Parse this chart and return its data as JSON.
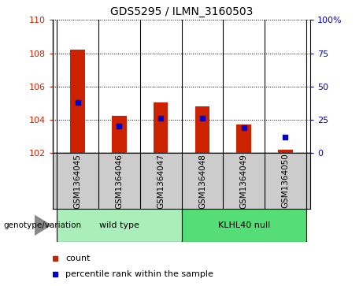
{
  "title": "GDS5295 / ILMN_3160503",
  "samples": [
    "GSM1364045",
    "GSM1364046",
    "GSM1364047",
    "GSM1364048",
    "GSM1364049",
    "GSM1364050"
  ],
  "count_values": [
    108.22,
    104.22,
    105.02,
    104.82,
    103.72,
    102.22
  ],
  "percentile_values": [
    38,
    20,
    26,
    26,
    19,
    12
  ],
  "baseline": 102,
  "ylim_left": [
    102,
    110
  ],
  "ylim_right": [
    0,
    100
  ],
  "yticks_left": [
    102,
    104,
    106,
    108,
    110
  ],
  "yticks_right": [
    0,
    25,
    50,
    75,
    100
  ],
  "bar_color": "#cc2200",
  "dot_color": "#0000cc",
  "bar_width": 0.35,
  "groups": [
    {
      "label": "wild type",
      "samples": [
        0,
        1,
        2
      ],
      "color": "#aaeebb"
    },
    {
      "label": "KLHL40 null",
      "samples": [
        3,
        4,
        5
      ],
      "color": "#55dd77"
    }
  ],
  "genotype_label": "genotype/variation",
  "legend_count": "count",
  "legend_percentile": "percentile rank within the sample",
  "left_tick_color": "#cc2200",
  "right_tick_color": "#0000cc",
  "label_bg_color": "#cccccc",
  "group_border_color": "#000000"
}
